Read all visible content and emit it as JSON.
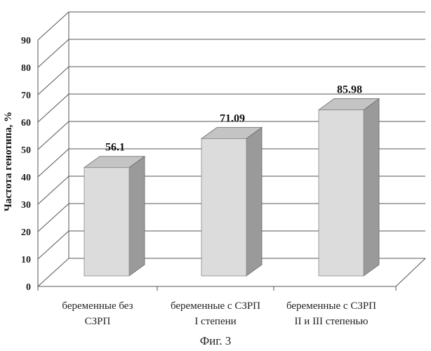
{
  "chart_data": {
    "type": "bar",
    "categories": [
      [
        "беременные без",
        "СЗРП"
      ],
      [
        "беременные с СЗРП",
        "I степени"
      ],
      [
        "беременные с СЗРП",
        "II и III степенью"
      ]
    ],
    "values": [
      56.1,
      71.09,
      85.98
    ],
    "value_labels": [
      "56.1",
      "71.09",
      "85.98"
    ],
    "ylabel": "Частота генотипа, %",
    "ylim": [
      0,
      90
    ],
    "yticks": [
      0,
      10,
      20,
      30,
      40,
      50,
      60,
      70,
      80,
      90
    ],
    "grid": true,
    "style": "3d-column",
    "colors": {
      "bar_front": "#dcdcdc",
      "bar_side": "#9a9a9a",
      "bar_top": "#c4c4c4",
      "grid": "#555555"
    }
  },
  "caption": "Фиг. 3"
}
